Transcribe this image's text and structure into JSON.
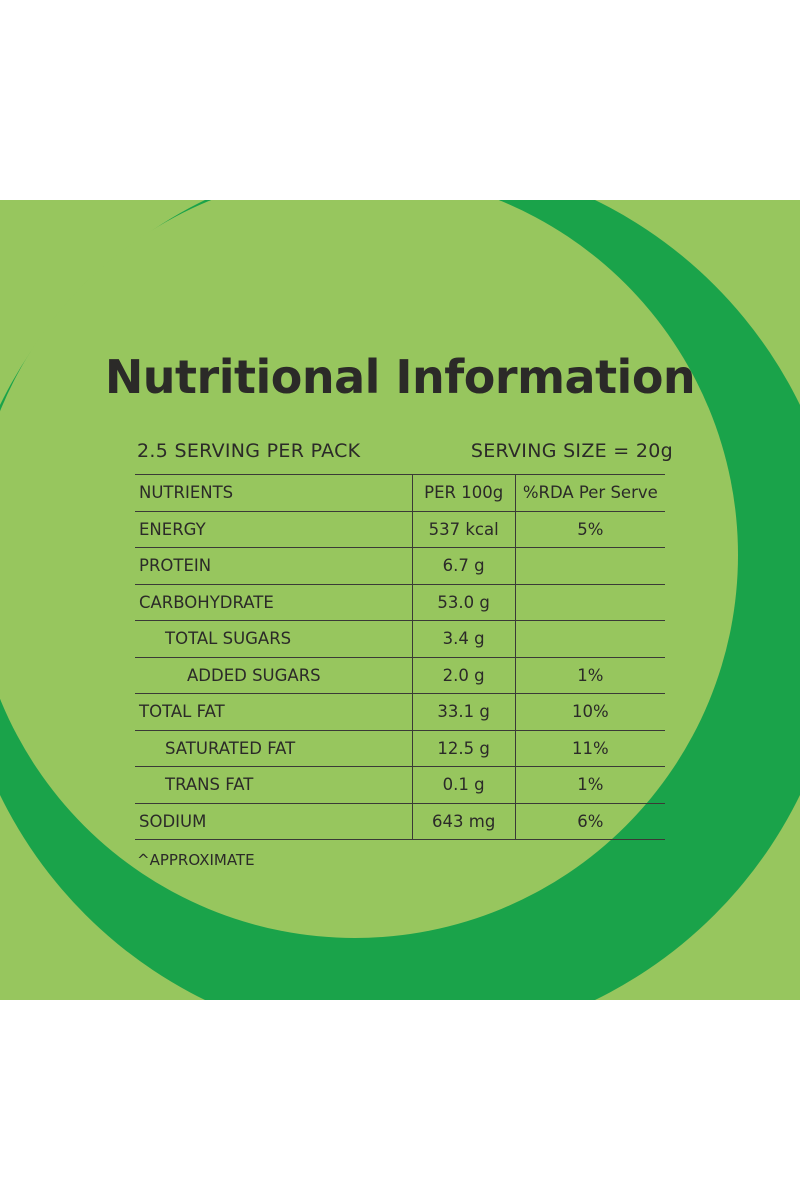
{
  "title": "Nutritional Information",
  "serving_per_pack": "2.5 SERVING PER PACK",
  "serving_size": "SERVING SIZE = 20g",
  "table": {
    "headers": [
      "NUTRIENTS",
      "PER 100g",
      "%RDA Per Serve"
    ],
    "rows": [
      {
        "name": "ENERGY",
        "per100": "537 kcal",
        "rda": "5%"
      },
      {
        "name": "PROTEIN",
        "per100": "6.7 g",
        "rda": ""
      },
      {
        "name": "CARBOHYDRATE",
        "per100": "53.0 g",
        "rda": ""
      },
      {
        "name": "TOTAL SUGARS",
        "per100": "3.4 g",
        "rda": ""
      },
      {
        "name": "ADDED SUGARS",
        "per100": "2.0 g",
        "rda": "1%"
      },
      {
        "name": "TOTAL FAT",
        "per100": "33.1 g",
        "rda": "10%"
      },
      {
        "name": "SATURATED FAT",
        "per100": "12.5 g",
        "rda": "11%"
      },
      {
        "name": "TRANS FAT",
        "per100": "0.1 g",
        "rda": "1%"
      },
      {
        "name": "SODIUM",
        "per100": "643 mg",
        "rda": "6%"
      }
    ]
  },
  "footnote": "^APPROXIMATE",
  "colors": {
    "light_green": "#97c65e",
    "dark_green": "#1aa34a",
    "text": "#2b2a28"
  }
}
